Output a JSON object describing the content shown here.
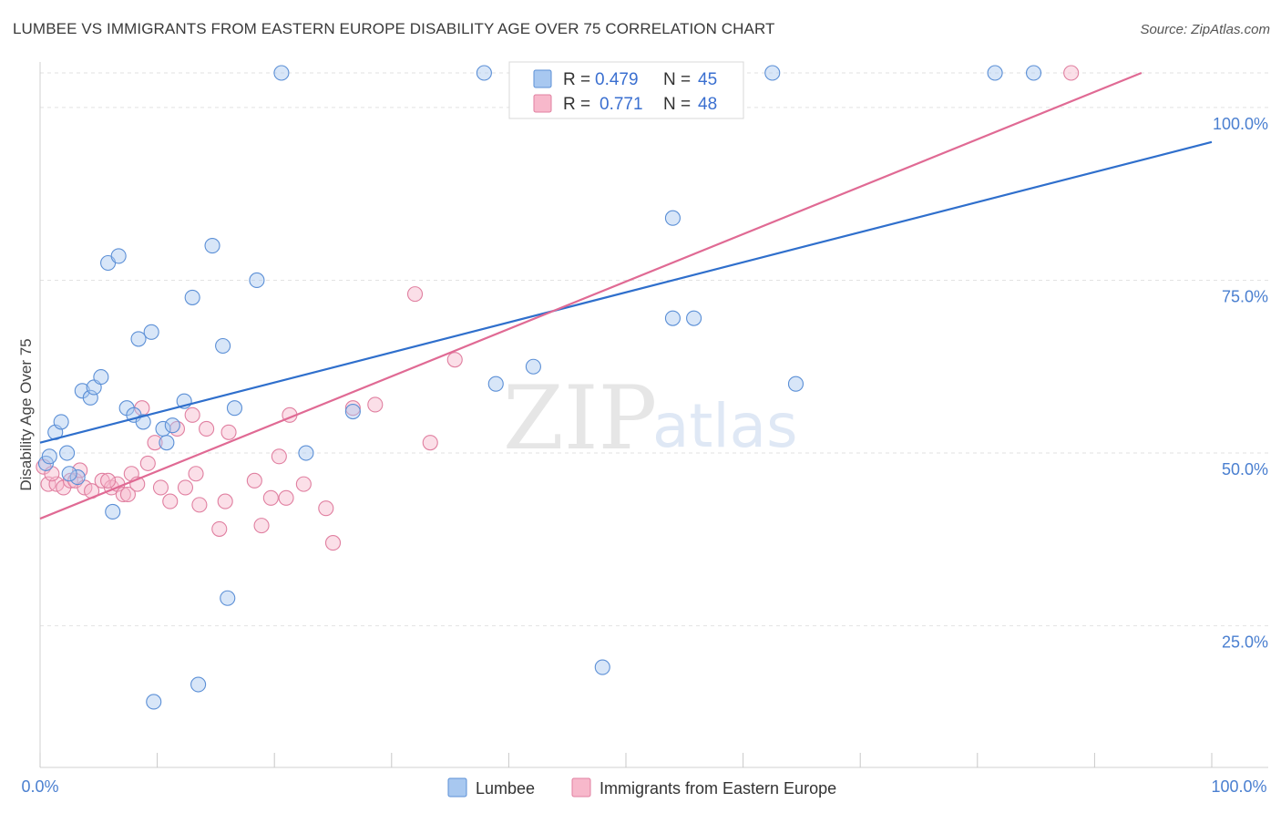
{
  "header": {
    "title": "LUMBEE VS IMMIGRANTS FROM EASTERN EUROPE DISABILITY AGE OVER 75 CORRELATION CHART",
    "source": "Source: ZipAtlas.com"
  },
  "watermark": {
    "zip": "ZIP",
    "atlas": "atlas"
  },
  "colors": {
    "lumbee_fill": "#a8c8f0",
    "lumbee_stroke": "#5b8fd6",
    "lumbee_line": "#2f6fcc",
    "imm_fill": "#f7b8cb",
    "imm_stroke": "#e07fa0",
    "imm_line": "#e06a94"
  },
  "legend": {
    "row1": {
      "r_label": "R =",
      "r_value": "0.479",
      "n_label": "N =",
      "n_value": "45"
    },
    "row2": {
      "r_label": "R =",
      "r_value": "0.771",
      "n_label": "N =",
      "n_value": "48"
    }
  },
  "chart_data": {
    "type": "scatter",
    "title": "LUMBEE VS IMMIGRANTS FROM EASTERN EUROPE DISABILITY AGE OVER 75 CORRELATION CHART",
    "xlabel": "",
    "ylabel": "Disability Age Over 75",
    "xlim": [
      0,
      100
    ],
    "ylim": [
      0,
      105
    ],
    "x_tick_labels": [
      "0.0%",
      "100.0%"
    ],
    "y_ticks": [
      25,
      50,
      75,
      100
    ],
    "y_tick_labels": [
      "25.0%",
      "50.0%",
      "75.0%",
      "100.0%"
    ],
    "grid": "horizontal dashed",
    "legend_position": "top-center",
    "series": [
      {
        "name": "Lumbee",
        "r": 0.479,
        "n": 45,
        "trend": {
          "x": [
            0,
            100
          ],
          "y": [
            51.5,
            95
          ]
        },
        "points": [
          [
            0.5,
            48.5
          ],
          [
            0.8,
            49.5
          ],
          [
            1.3,
            53
          ],
          [
            1.8,
            54.5
          ],
          [
            2.3,
            50
          ],
          [
            3.2,
            46.5
          ],
          [
            3.6,
            59
          ],
          [
            4.3,
            58
          ],
          [
            4.6,
            59.5
          ],
          [
            5.2,
            61
          ],
          [
            5.8,
            77.5
          ],
          [
            6.7,
            78.5
          ],
          [
            6.2,
            41.5
          ],
          [
            7.4,
            56.5
          ],
          [
            8.0,
            55.5
          ],
          [
            8.4,
            66.5
          ],
          [
            8.8,
            54.5
          ],
          [
            9.5,
            67.5
          ],
          [
            10.5,
            53.5
          ],
          [
            10.8,
            51.5
          ],
          [
            11.3,
            54
          ],
          [
            12.3,
            57.5
          ],
          [
            13.0,
            72.5
          ],
          [
            14.7,
            80
          ],
          [
            15.6,
            65.5
          ],
          [
            16.6,
            56.5
          ],
          [
            18.5,
            75
          ],
          [
            20.6,
            105
          ],
          [
            22.7,
            50
          ],
          [
            26.7,
            56
          ],
          [
            37.9,
            105
          ],
          [
            38.9,
            60
          ],
          [
            42.1,
            62.5
          ],
          [
            54.0,
            69.5
          ],
          [
            54.0,
            84
          ],
          [
            55.8,
            69.5
          ],
          [
            62.5,
            105
          ],
          [
            64.5,
            60
          ],
          [
            81.5,
            105
          ],
          [
            84.8,
            105
          ],
          [
            9.7,
            14
          ],
          [
            13.5,
            16.5
          ],
          [
            16.0,
            29
          ],
          [
            48.0,
            19
          ],
          [
            2.5,
            47
          ]
        ]
      },
      {
        "name": "Immigrants from Eastern Europe",
        "r": 0.771,
        "n": 48,
        "trend": {
          "x": [
            0,
            94
          ],
          "y": [
            40.5,
            105
          ]
        },
        "points": [
          [
            0.3,
            48
          ],
          [
            0.7,
            45.5
          ],
          [
            1.4,
            45.5
          ],
          [
            2.0,
            45
          ],
          [
            2.6,
            46
          ],
          [
            3.0,
            46
          ],
          [
            3.4,
            47.5
          ],
          [
            3.8,
            45
          ],
          [
            4.4,
            44.5
          ],
          [
            5.3,
            46
          ],
          [
            6.1,
            45
          ],
          [
            6.6,
            45.5
          ],
          [
            7.1,
            44
          ],
          [
            7.5,
            44
          ],
          [
            7.8,
            47
          ],
          [
            8.3,
            45.5
          ],
          [
            8.7,
            56.5
          ],
          [
            9.2,
            48.5
          ],
          [
            9.8,
            51.5
          ],
          [
            10.3,
            45
          ],
          [
            11.1,
            43
          ],
          [
            11.7,
            53.5
          ],
          [
            12.4,
            45
          ],
          [
            13.0,
            55.5
          ],
          [
            13.3,
            47
          ],
          [
            13.6,
            42.5
          ],
          [
            14.2,
            53.5
          ],
          [
            15.3,
            39
          ],
          [
            15.8,
            43
          ],
          [
            16.1,
            53
          ],
          [
            18.3,
            46
          ],
          [
            18.9,
            39.5
          ],
          [
            19.7,
            43.5
          ],
          [
            20.4,
            49.5
          ],
          [
            21.0,
            43.5
          ],
          [
            21.3,
            55.5
          ],
          [
            22.5,
            45.5
          ],
          [
            24.4,
            42
          ],
          [
            25.0,
            37
          ],
          [
            26.7,
            56.5
          ],
          [
            28.6,
            57
          ],
          [
            32.0,
            73
          ],
          [
            33.3,
            51.5
          ],
          [
            35.4,
            63.5
          ],
          [
            47.5,
            105
          ],
          [
            88.0,
            105
          ],
          [
            1.0,
            47
          ],
          [
            5.8,
            46
          ]
        ]
      }
    ]
  },
  "bottom_legend": {
    "item1": "Lumbee",
    "item2": "Immigrants from Eastern Europe"
  }
}
